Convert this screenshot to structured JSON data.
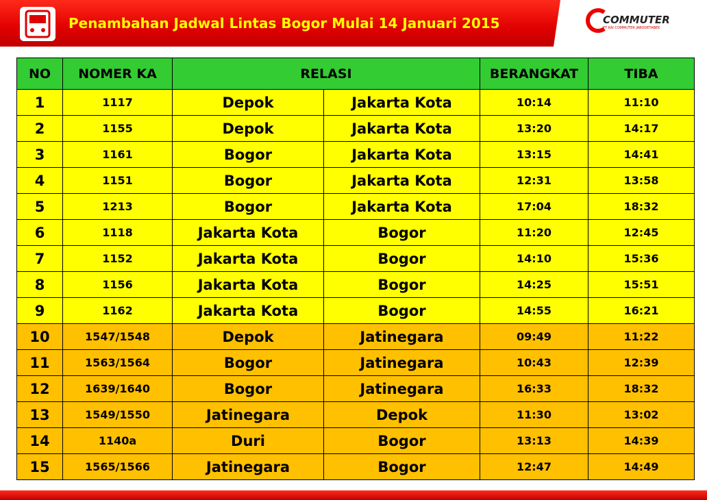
{
  "header": {
    "title": "Penambahan Jadwal Lintas Bogor Mulai 14 Januari 2015",
    "logo": {
      "name": "COMMUTER",
      "subtitle": "PT KAI COMMUTER JABODETABEK"
    }
  },
  "table": {
    "columns": [
      "NO",
      "NOMER KA",
      "RELASI",
      "BERANGKAT",
      "TIBA"
    ],
    "rows": [
      [
        "1",
        "1117",
        "Depok",
        "Jakarta Kota",
        "10:14",
        "11:10"
      ],
      [
        "2",
        "1155",
        "Depok",
        "Jakarta Kota",
        "13:20",
        "14:17"
      ],
      [
        "3",
        "1161",
        "Bogor",
        "Jakarta Kota",
        "13:15",
        "14:41"
      ],
      [
        "4",
        "1151",
        "Bogor",
        "Jakarta Kota",
        "12:31",
        "13:58"
      ],
      [
        "5",
        "1213",
        "Bogor",
        "Jakarta Kota",
        "17:04",
        "18:32"
      ],
      [
        "6",
        "1118",
        "Jakarta Kota",
        "Bogor",
        "11:20",
        "12:45"
      ],
      [
        "7",
        "1152",
        "Jakarta Kota",
        "Bogor",
        "14:10",
        "15:36"
      ],
      [
        "8",
        "1156",
        "Jakarta Kota",
        "Bogor",
        "14:25",
        "15:51"
      ],
      [
        "9",
        "1162",
        "Jakarta Kota",
        "Bogor",
        "14:55",
        "16:21"
      ],
      [
        "10",
        "1547/1548",
        "Depok",
        "Jatinegara",
        "09:49",
        "11:22"
      ],
      [
        "11",
        "1563/1564",
        "Bogor",
        "Jatinegara",
        "10:43",
        "12:39"
      ],
      [
        "12",
        "1639/1640",
        "Bogor",
        "Jatinegara",
        "16:33",
        "18:32"
      ],
      [
        "13",
        "1549/1550",
        "Jatinegara",
        "Depok",
        "11:30",
        "13:02"
      ],
      [
        "14",
        "1140a",
        "Duri",
        "Bogor",
        "13:13",
        "14:39"
      ],
      [
        "15",
        "1565/1566",
        "Jatinegara",
        "Bogor",
        "12:47",
        "14:49"
      ]
    ]
  }
}
